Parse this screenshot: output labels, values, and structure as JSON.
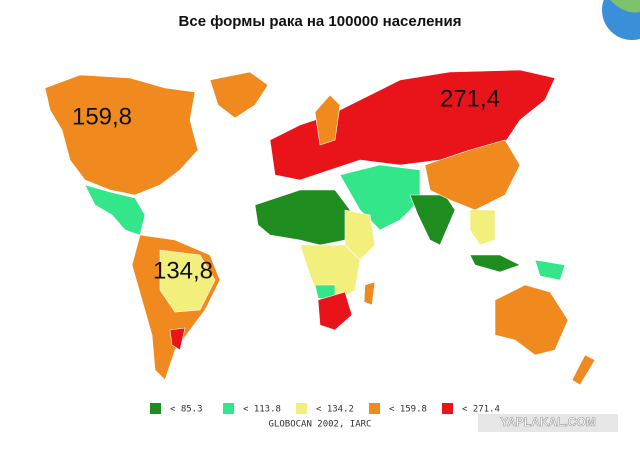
{
  "title": "Все формы рака на 100000 населения",
  "regions": [
    {
      "label": "159,8"
    },
    {
      "label": "271,4"
    },
    {
      "label": "134,8"
    }
  ],
  "legend": {
    "items": [
      {
        "label": "<  85.3",
        "color": "#1e8c1e"
      },
      {
        "label": "< 113.8",
        "color": "#33e68a"
      },
      {
        "label": "< 134.2",
        "color": "#f3ef7c"
      },
      {
        "label": "< 159.8",
        "color": "#f08a1e"
      },
      {
        "label": "< 271.4",
        "color": "#e8141a"
      }
    ]
  },
  "source": "GLOBOCAN 2002, IARC",
  "watermark": "YAPLAKAL.COM"
}
